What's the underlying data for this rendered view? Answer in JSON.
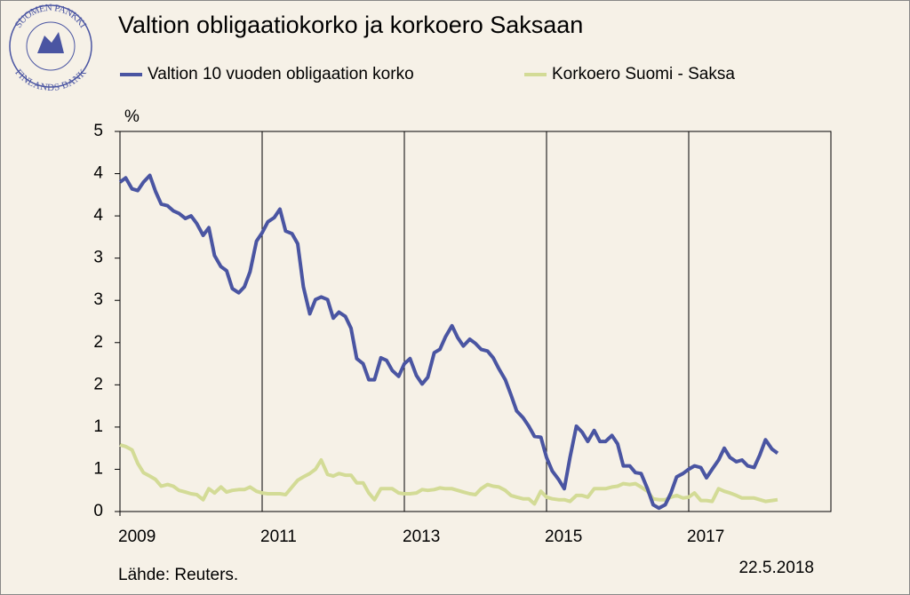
{
  "logo": {
    "top": "SUOMEN PANKKI",
    "bottom": "FINLANDS BANK"
  },
  "chart_data": {
    "type": "line",
    "title": "Valtion obligaatiokorko ja korkoero Saksaan",
    "y_label": "%",
    "source": "Lähde: Reuters.",
    "date": "22.5.2018",
    "xlim": [
      2009,
      2019
    ],
    "xticks": [
      2009,
      2011,
      2013,
      2015,
      2017
    ],
    "ylim": [
      0,
      4.5
    ],
    "yticks": [
      0,
      {
        "value": 0.5,
        "label": "1"
      },
      1,
      {
        "value": 1.5,
        "label": "2"
      },
      2,
      {
        "value": 2.5,
        "label": "3"
      },
      3,
      {
        "value": 3.5,
        "label": "4"
      },
      4,
      {
        "value": 4.5,
        "label": "5"
      }
    ],
    "grid": true,
    "x": [
      2009.0,
      2009.08,
      2009.17,
      2009.25,
      2009.33,
      2009.42,
      2009.5,
      2009.58,
      2009.67,
      2009.75,
      2009.83,
      2009.92,
      2010.0,
      2010.08,
      2010.17,
      2010.25,
      2010.33,
      2010.42,
      2010.5,
      2010.58,
      2010.67,
      2010.75,
      2010.83,
      2010.92,
      2011.0,
      2011.08,
      2011.17,
      2011.25,
      2011.33,
      2011.42,
      2011.5,
      2011.58,
      2011.67,
      2011.75,
      2011.83,
      2011.92,
      2012.0,
      2012.08,
      2012.17,
      2012.25,
      2012.33,
      2012.42,
      2012.5,
      2012.58,
      2012.67,
      2012.75,
      2012.83,
      2012.92,
      2013.0,
      2013.08,
      2013.17,
      2013.25,
      2013.33,
      2013.42,
      2013.5,
      2013.58,
      2013.67,
      2013.75,
      2013.83,
      2013.92,
      2014.0,
      2014.08,
      2014.17,
      2014.25,
      2014.33,
      2014.42,
      2014.5,
      2014.58,
      2014.67,
      2014.75,
      2014.83,
      2014.92,
      2015.0,
      2015.08,
      2015.17,
      2015.25,
      2015.33,
      2015.42,
      2015.5,
      2015.58,
      2015.67,
      2015.75,
      2015.83,
      2015.92,
      2016.0,
      2016.08,
      2016.17,
      2016.25,
      2016.33,
      2016.42,
      2016.5,
      2016.58,
      2016.67,
      2016.75,
      2016.83,
      2016.92,
      2017.0,
      2017.08,
      2017.17,
      2017.25,
      2017.33,
      2017.42,
      2017.5,
      2017.58,
      2017.67,
      2017.75,
      2017.83,
      2017.92,
      2018.0,
      2018.08,
      2018.17,
      2018.25
    ],
    "series": [
      {
        "name": "Valtion 10 vuoden obligaation korko",
        "color": "#4a55a2",
        "values": [
          3.9,
          3.95,
          3.82,
          3.8,
          3.9,
          3.98,
          3.79,
          3.64,
          3.62,
          3.56,
          3.53,
          3.47,
          3.5,
          3.41,
          3.27,
          3.36,
          3.03,
          2.9,
          2.85,
          2.64,
          2.59,
          2.66,
          2.84,
          3.2,
          3.3,
          3.43,
          3.48,
          3.58,
          3.32,
          3.29,
          3.17,
          2.66,
          2.34,
          2.51,
          2.54,
          2.51,
          2.29,
          2.36,
          2.31,
          2.17,
          1.81,
          1.75,
          1.56,
          1.56,
          1.82,
          1.79,
          1.67,
          1.6,
          1.75,
          1.81,
          1.61,
          1.51,
          1.59,
          1.88,
          1.92,
          2.07,
          2.2,
          2.06,
          1.96,
          2.04,
          1.99,
          1.92,
          1.9,
          1.82,
          1.69,
          1.56,
          1.38,
          1.19,
          1.11,
          1.01,
          0.89,
          0.88,
          0.64,
          0.48,
          0.38,
          0.27,
          0.64,
          1.01,
          0.94,
          0.83,
          0.96,
          0.83,
          0.83,
          0.9,
          0.8,
          0.54,
          0.54,
          0.46,
          0.45,
          0.27,
          0.08,
          0.04,
          0.08,
          0.22,
          0.41,
          0.45,
          0.5,
          0.54,
          0.52,
          0.4,
          0.5,
          0.61,
          0.75,
          0.64,
          0.59,
          0.61,
          0.54,
          0.52,
          0.67,
          0.85,
          0.74,
          0.69
        ]
      },
      {
        "name": "Korkoero Suomi - Saksa",
        "color": "#d3db96",
        "values": [
          0.79,
          0.77,
          0.73,
          0.57,
          0.46,
          0.42,
          0.38,
          0.3,
          0.32,
          0.3,
          0.25,
          0.23,
          0.21,
          0.2,
          0.14,
          0.27,
          0.22,
          0.29,
          0.23,
          0.25,
          0.26,
          0.26,
          0.29,
          0.24,
          0.22,
          0.21,
          0.21,
          0.21,
          0.2,
          0.29,
          0.37,
          0.41,
          0.45,
          0.5,
          0.61,
          0.44,
          0.42,
          0.45,
          0.43,
          0.43,
          0.34,
          0.34,
          0.22,
          0.14,
          0.27,
          0.27,
          0.27,
          0.22,
          0.21,
          0.21,
          0.22,
          0.26,
          0.25,
          0.26,
          0.28,
          0.27,
          0.27,
          0.25,
          0.23,
          0.21,
          0.2,
          0.27,
          0.32,
          0.3,
          0.29,
          0.25,
          0.19,
          0.17,
          0.15,
          0.15,
          0.09,
          0.24,
          0.17,
          0.15,
          0.14,
          0.14,
          0.12,
          0.19,
          0.19,
          0.17,
          0.27,
          0.27,
          0.27,
          0.29,
          0.3,
          0.33,
          0.32,
          0.33,
          0.29,
          0.24,
          0.15,
          0.14,
          0.14,
          0.17,
          0.19,
          0.16,
          0.17,
          0.22,
          0.13,
          0.13,
          0.12,
          0.27,
          0.24,
          0.22,
          0.19,
          0.16,
          0.16,
          0.16,
          0.14,
          0.12,
          0.13,
          0.14
        ]
      }
    ]
  }
}
